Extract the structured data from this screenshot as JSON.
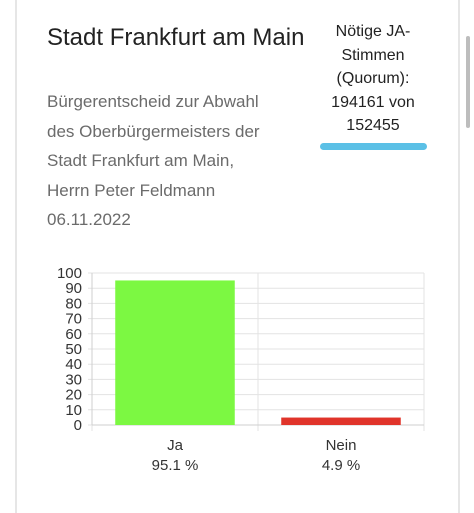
{
  "card": {
    "title": "Stadt Frankfurt am Main",
    "description": "Bürgerentscheid zur Abwahl\ndes Oberbürgermeisters der\nStadt Frankfurt am Main,\nHerrn Peter Feldmann\n06.11.2022",
    "quorum": "Nötige JA-\nStimmen\n(Quorum):\n194161 von\n152455",
    "quorum_color": "#5bc0e6"
  },
  "chart_data": {
    "type": "bar",
    "title": "",
    "xlabel": "",
    "ylabel": "",
    "categories": [
      "Ja",
      "Nein"
    ],
    "values": [
      95.1,
      4.9
    ],
    "value_labels": [
      "95.1 %",
      "4.9 %"
    ],
    "colors": [
      "#7cf842",
      "#e0342a"
    ],
    "ylim": [
      0,
      100
    ],
    "yticks": [
      "0",
      "10",
      "20",
      "30",
      "40",
      "50",
      "60",
      "70",
      "80",
      "90",
      "100"
    ],
    "grid": true
  }
}
